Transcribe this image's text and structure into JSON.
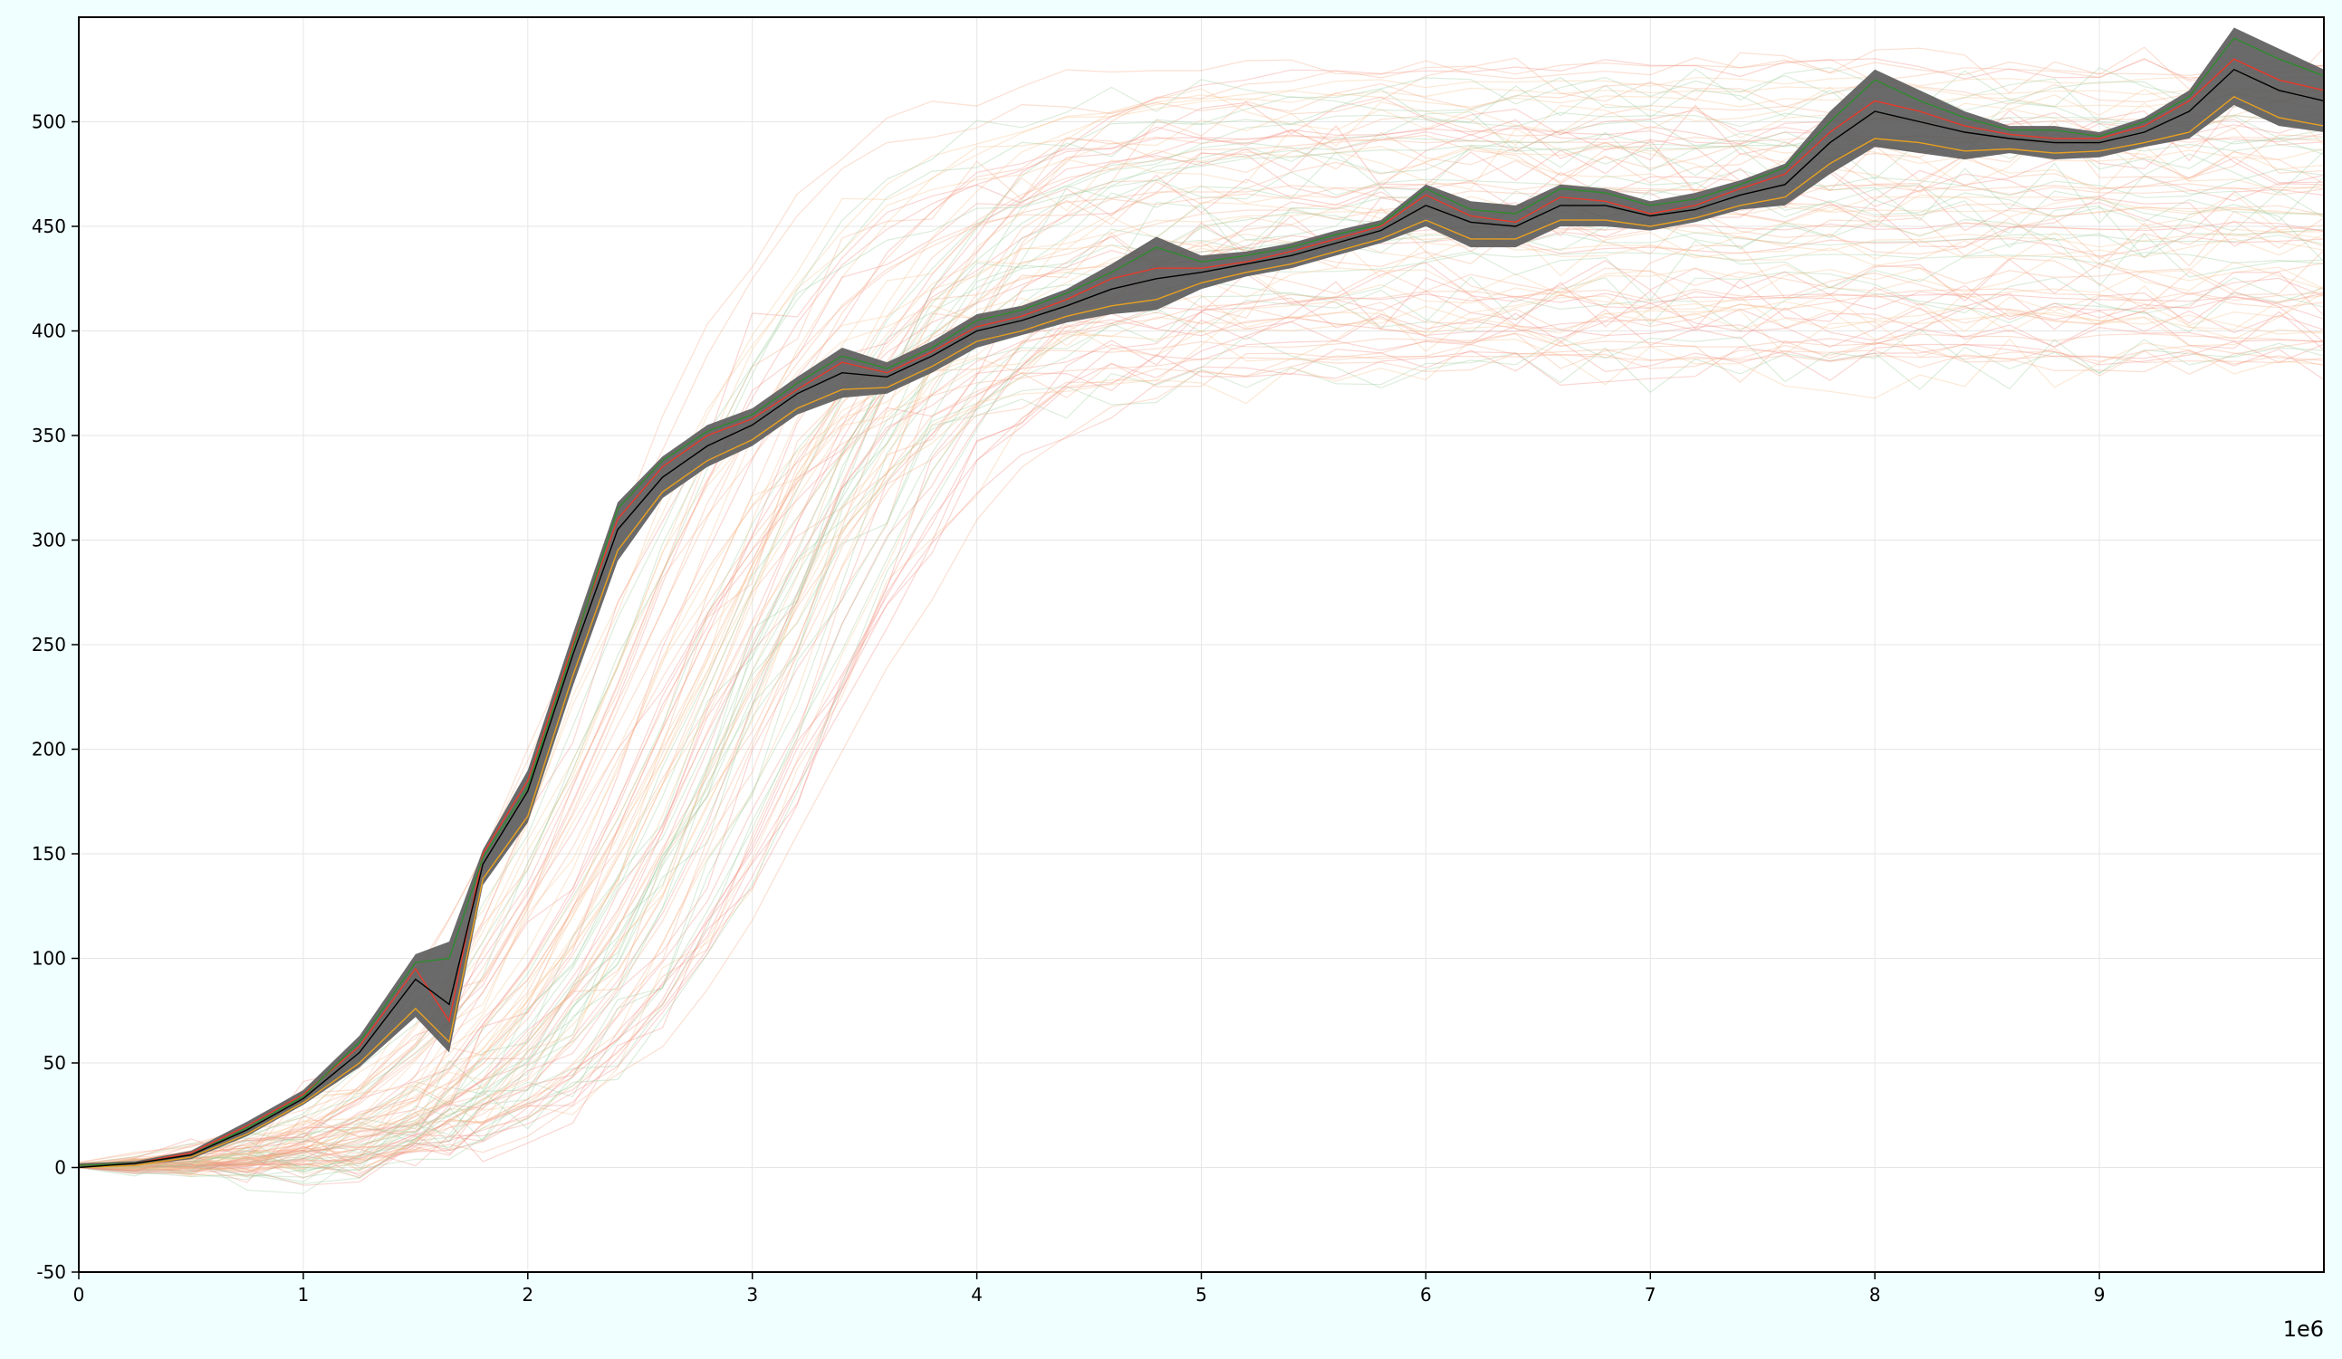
{
  "chart_data": {
    "type": "line",
    "title": "",
    "xlabel": "",
    "ylabel": "",
    "x_offset_label": "1e6",
    "xlim": [
      0,
      10
    ],
    "ylim": [
      -50,
      550
    ],
    "x_ticks": [
      0,
      1,
      2,
      3,
      4,
      5,
      6,
      7,
      8,
      9
    ],
    "x_tick_labels": [
      "0",
      "1",
      "2",
      "3",
      "4",
      "5",
      "6",
      "7",
      "8",
      "9"
    ],
    "y_ticks": [
      -50,
      0,
      50,
      100,
      150,
      200,
      250,
      300,
      350,
      400,
      450,
      500
    ],
    "y_tick_labels": [
      "-50",
      "0",
      "50",
      "100",
      "150",
      "200",
      "250",
      "300",
      "350",
      "400",
      "450",
      "500"
    ],
    "grid": true,
    "colors": {
      "band": "#5a5a5a",
      "mean_line": "#000000",
      "series_red": "#e8392a",
      "series_green": "#2e8b2e",
      "series_orange": "#e8a020",
      "faint_traces": [
        "#f4a582",
        "#f6c08a",
        "#9ccc9c",
        "#f08a80"
      ],
      "grid": "#e6e6e6",
      "page_background": "#f0ffff"
    },
    "mean": {
      "x": [
        0,
        0.25,
        0.5,
        0.75,
        1.0,
        1.25,
        1.5,
        1.65,
        1.8,
        2.0,
        2.2,
        2.4,
        2.6,
        2.8,
        3.0,
        3.2,
        3.4,
        3.6,
        3.8,
        4.0,
        4.2,
        4.4,
        4.6,
        4.8,
        5.0,
        5.2,
        5.4,
        5.6,
        5.8,
        6.0,
        6.2,
        6.4,
        6.6,
        6.8,
        7.0,
        7.2,
        7.4,
        7.6,
        7.8,
        8.0,
        8.2,
        8.4,
        8.6,
        8.8,
        9.0,
        9.2,
        9.4,
        9.6,
        9.8,
        10.0
      ],
      "y": [
        0,
        2,
        6,
        18,
        33,
        55,
        90,
        78,
        145,
        180,
        245,
        305,
        330,
        345,
        355,
        370,
        380,
        378,
        388,
        400,
        405,
        412,
        420,
        425,
        428,
        432,
        436,
        442,
        448,
        460,
        452,
        450,
        460,
        460,
        455,
        458,
        465,
        470,
        490,
        505,
        500,
        495,
        492,
        490,
        490,
        495,
        505,
        525,
        515,
        510
      ]
    },
    "band": {
      "upper": [
        2,
        3,
        8,
        22,
        37,
        63,
        102,
        108,
        152,
        190,
        255,
        318,
        340,
        355,
        363,
        378,
        392,
        385,
        395,
        408,
        412,
        420,
        432,
        445,
        436,
        438,
        442,
        448,
        453,
        470,
        462,
        460,
        470,
        468,
        462,
        466,
        472,
        480,
        505,
        525,
        515,
        505,
        498,
        498,
        495,
        502,
        515,
        545,
        535,
        525
      ],
      "lower": [
        0,
        1,
        4,
        15,
        30,
        48,
        72,
        55,
        135,
        165,
        230,
        290,
        320,
        335,
        345,
        360,
        368,
        370,
        380,
        392,
        398,
        404,
        408,
        410,
        420,
        426,
        430,
        436,
        442,
        450,
        440,
        440,
        450,
        450,
        448,
        452,
        458,
        460,
        475,
        488,
        485,
        482,
        485,
        482,
        483,
        488,
        492,
        508,
        498,
        495
      ]
    },
    "series": [
      {
        "color": "#e8392a",
        "values": [
          1,
          2,
          7,
          20,
          35,
          58,
          95,
          70,
          150,
          185,
          250,
          310,
          335,
          350,
          358,
          372,
          385,
          380,
          390,
          402,
          407,
          415,
          425,
          430,
          430,
          433,
          438,
          444,
          450,
          465,
          455,
          452,
          464,
          462,
          456,
          460,
          468,
          475,
          495,
          510,
          505,
          498,
          494,
          492,
          492,
          498,
          510,
          530,
          520,
          515
        ]
      },
      {
        "color": "#2e8b2e",
        "values": [
          1,
          2,
          6,
          19,
          34,
          60,
          98,
          100,
          148,
          182,
          248,
          315,
          338,
          352,
          360,
          375,
          388,
          382,
          392,
          405,
          410,
          418,
          428,
          440,
          433,
          436,
          440,
          446,
          451,
          468,
          458,
          456,
          468,
          466,
          460,
          463,
          470,
          478,
          500,
          520,
          510,
          502,
          496,
          496,
          493,
          500,
          512,
          540,
          530,
          522
        ]
      },
      {
        "color": "#e8a020",
        "values": [
          0,
          1,
          5,
          16,
          31,
          50,
          76,
          60,
          138,
          168,
          235,
          295,
          323,
          338,
          348,
          363,
          372,
          373,
          383,
          395,
          400,
          407,
          412,
          415,
          423,
          428,
          432,
          438,
          444,
          453,
          444,
          444,
          453,
          453,
          450,
          454,
          460,
          464,
          480,
          492,
          490,
          486,
          487,
          485,
          486,
          490,
          495,
          512,
          502,
          498
        ]
      }
    ]
  }
}
